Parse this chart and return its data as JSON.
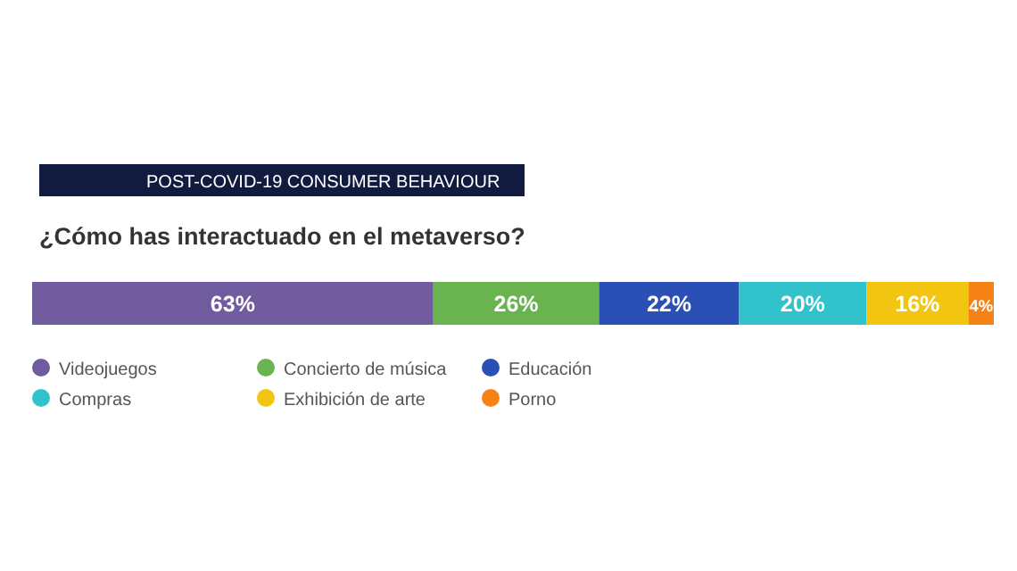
{
  "chart_data": {
    "type": "bar",
    "orientation": "horizontal",
    "stacked": true,
    "legend": "bottom",
    "subtitle": "POST-COVID-19 CONSUMER BEHAVIOUR",
    "title": "¿Cómo has interactuado en el metaverso?",
    "categories": [
      null
    ],
    "series": [
      {
        "name": "Videojuegos",
        "color": "#6f5b9e",
        "values": [
          63
        ],
        "value_labels": [
          "63%"
        ]
      },
      {
        "name": "Concierto de música",
        "color": "#6ab351",
        "values": [
          26
        ],
        "value_labels": [
          "26%"
        ]
      },
      {
        "name": "Educación",
        "color": "#2a4fb5",
        "values": [
          22
        ],
        "value_labels": [
          "22%"
        ]
      },
      {
        "name": "Compras",
        "color": "#31c2cc",
        "values": [
          20
        ],
        "value_labels": [
          "20%"
        ]
      },
      {
        "name": "Exhibición de arte",
        "color": "#f2c511",
        "values": [
          16
        ],
        "value_labels": [
          "16%"
        ]
      },
      {
        "name": "Porno",
        "color": "#f68215",
        "values": [
          4
        ],
        "value_labels": [
          "4%"
        ]
      }
    ]
  }
}
